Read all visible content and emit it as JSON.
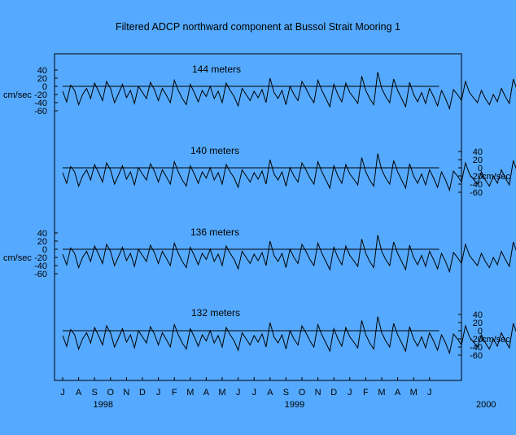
{
  "chart_data": {
    "type": "line",
    "title": "Filtered ADCP northward component at Bussol Strait Mooring 1",
    "unit": "cm/sec",
    "yticks": [
      -60,
      -40,
      -20,
      0,
      20,
      40
    ],
    "y_axis_side": [
      "left",
      "right",
      "left",
      "right"
    ],
    "x_month_labels": [
      "J",
      "A",
      "S",
      "O",
      "N",
      "D",
      "J",
      "F",
      "M",
      "A",
      "M",
      "J",
      "J",
      "A",
      "S",
      "O",
      "N",
      "D",
      "J",
      "F",
      "M",
      "A",
      "M",
      "J"
    ],
    "x_year_labels": [
      {
        "label": "1998",
        "month_index": 3
      },
      {
        "label": "1999",
        "month_index": 15
      },
      {
        "label": "2000",
        "month_index": 27
      }
    ],
    "x_note": "x values are months since the first tick (J = July 1997); samples every 0.25 month",
    "x_start": 0,
    "x_step": 0.25,
    "series": [
      {
        "name": "144 meters",
        "values": [
          -12,
          -38,
          3,
          -10,
          -45,
          -20,
          -5,
          -30,
          8,
          -12,
          -35,
          12,
          -5,
          -40,
          -18,
          5,
          -28,
          -10,
          -42,
          0,
          -15,
          -30,
          10,
          -8,
          -35,
          -5,
          -22,
          -40,
          15,
          -10,
          -30,
          -45,
          5,
          -15,
          -38,
          -10,
          -25,
          0,
          -30,
          -12,
          -40,
          8,
          -10,
          -25,
          -48,
          -5,
          -20,
          -35,
          -12,
          -28,
          -8,
          -40,
          20,
          -15,
          -30,
          -10,
          -45,
          0,
          -20,
          -35,
          12,
          -5,
          -25,
          -40,
          15,
          -10,
          -30,
          -50,
          5,
          -20,
          -38,
          8,
          -15,
          -28,
          -42,
          25,
          -10,
          -30,
          -45,
          35,
          -5,
          -25,
          -40,
          18,
          -10,
          -30,
          -50,
          10,
          -20,
          -38,
          -15,
          -42,
          -5,
          -25,
          -48,
          -10,
          -30,
          -55,
          -8,
          -20,
          -35,
          12,
          -15,
          -28,
          -40,
          -10,
          -30,
          -45,
          -20,
          -38,
          -5,
          -25,
          -42,
          18,
          -10,
          -30,
          -15,
          -40,
          -20,
          -35,
          -25
        ]
      },
      {
        "name": "140 meters",
        "values": [
          -12,
          -38,
          3,
          -10,
          -45,
          -20,
          -5,
          -30,
          8,
          -12,
          -35,
          12,
          -5,
          -40,
          -18,
          5,
          -28,
          -10,
          -42,
          0,
          -15,
          -30,
          10,
          -8,
          -35,
          -5,
          -22,
          -40,
          15,
          -10,
          -30,
          -45,
          5,
          -15,
          -38,
          -10,
          -25,
          0,
          -30,
          -12,
          -40,
          8,
          -10,
          -25,
          -48,
          -5,
          -20,
          -35,
          -12,
          -28,
          -8,
          -40,
          20,
          -15,
          -30,
          -10,
          -45,
          0,
          -20,
          -35,
          12,
          -5,
          -25,
          -40,
          15,
          -10,
          -30,
          -50,
          5,
          -20,
          -38,
          8,
          -15,
          -28,
          -42,
          25,
          -10,
          -30,
          -45,
          35,
          -5,
          -25,
          -40,
          18,
          -10,
          -30,
          -50,
          10,
          -20,
          -38,
          -15,
          -42,
          -5,
          -25,
          -48,
          -10,
          -30,
          -55,
          -8,
          -20,
          -35,
          12,
          -15,
          -28,
          -40,
          -10,
          -30,
          -45,
          -20,
          -38,
          -5,
          -25,
          -42,
          18,
          -10,
          -30,
          -15,
          -40,
          -20,
          -35,
          -25
        ]
      },
      {
        "name": "136 meters",
        "values": [
          -12,
          -38,
          3,
          -10,
          -45,
          -20,
          -5,
          -30,
          8,
          -12,
          -35,
          12,
          -5,
          -40,
          -18,
          5,
          -28,
          -10,
          -42,
          0,
          -15,
          -30,
          10,
          -8,
          -35,
          -5,
          -22,
          -40,
          15,
          -10,
          -30,
          -45,
          5,
          -15,
          -38,
          -10,
          -25,
          0,
          -30,
          -12,
          -40,
          8,
          -10,
          -25,
          -48,
          -5,
          -20,
          -35,
          -12,
          -28,
          -8,
          -40,
          20,
          -15,
          -30,
          -10,
          -45,
          0,
          -20,
          -35,
          12,
          -5,
          -25,
          -40,
          15,
          -10,
          -30,
          -50,
          5,
          -20,
          -38,
          8,
          -15,
          -28,
          -42,
          25,
          -10,
          -30,
          -45,
          35,
          -5,
          -25,
          -40,
          18,
          -10,
          -30,
          -50,
          10,
          -20,
          -38,
          -15,
          -42,
          -5,
          -25,
          -48,
          -10,
          -30,
          -55,
          -8,
          -20,
          -35,
          12,
          -15,
          -28,
          -40,
          -10,
          -30,
          -45,
          -20,
          -38,
          -5,
          -25,
          -42,
          18,
          -10,
          -30,
          -15,
          -40,
          -20,
          -35,
          -25
        ]
      },
      {
        "name": "132 meters",
        "values": [
          -12,
          -38,
          3,
          -10,
          -45,
          -20,
          -5,
          -30,
          8,
          -12,
          -35,
          12,
          -5,
          -40,
          -18,
          5,
          -28,
          -10,
          -42,
          0,
          -15,
          -30,
          10,
          -8,
          -35,
          -5,
          -22,
          -40,
          15,
          -10,
          -30,
          -45,
          5,
          -15,
          -38,
          -10,
          -25,
          0,
          -30,
          -12,
          -40,
          8,
          -10,
          -25,
          -48,
          -5,
          -20,
          -35,
          -12,
          -28,
          -8,
          -40,
          20,
          -15,
          -30,
          -10,
          -45,
          0,
          -20,
          -35,
          12,
          -5,
          -25,
          -40,
          15,
          -10,
          -30,
          -50,
          5,
          -20,
          -38,
          8,
          -15,
          -28,
          -42,
          25,
          -10,
          -30,
          -45,
          35,
          -5,
          -25,
          -40,
          18,
          -10,
          -30,
          -50,
          10,
          -20,
          -38,
          -15,
          -42,
          -5,
          -25,
          -48,
          -10,
          -30,
          -55,
          -8,
          -20,
          -35,
          12,
          -15,
          -28,
          -40,
          -10,
          -30,
          -45,
          -20,
          -38,
          -5,
          -25,
          -42,
          18,
          -10,
          -30,
          -15,
          -40,
          -20,
          -35,
          -25
        ]
      }
    ]
  },
  "colors": {
    "background": "#55aaff",
    "line": "#000000"
  }
}
